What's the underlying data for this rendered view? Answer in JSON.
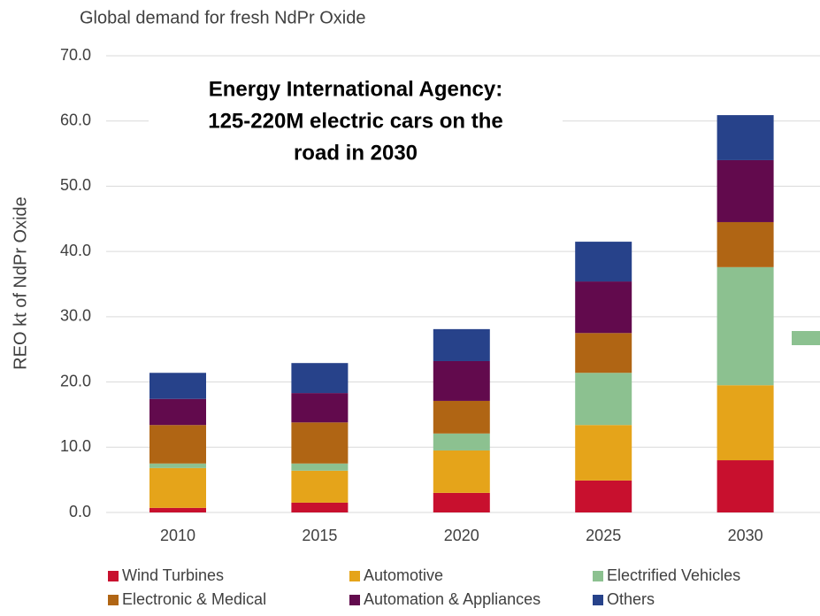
{
  "chart_data": {
    "type": "stacked_bar",
    "title": "Global demand for fresh NdPr Oxide",
    "y_label": "REO kt of NdPr Oxide",
    "annotation": [
      "Energy International Agency:",
      "125-220M electric cars on the",
      "road in 2030"
    ],
    "categories": [
      "2010",
      "2015",
      "2020",
      "2025",
      "2030"
    ],
    "series": [
      {
        "name": "Wind Turbines",
        "color": "#c8102e",
        "values": [
          0.7,
          1.5,
          3.0,
          4.9,
          8.0
        ]
      },
      {
        "name": "Automotive",
        "color": "#e5a41a",
        "values": [
          6.1,
          4.9,
          6.5,
          8.5,
          11.5
        ]
      },
      {
        "name": "Electrified Vehicles",
        "color": "#8cc190",
        "values": [
          0.7,
          1.1,
          2.6,
          8.0,
          18.1
        ]
      },
      {
        "name": "Electronic & Medical",
        "color": "#b06514",
        "values": [
          5.9,
          6.3,
          5.0,
          6.1,
          6.9
        ]
      },
      {
        "name": "Automation & Appliances",
        "color": "#620a4d",
        "values": [
          4.0,
          4.5,
          6.1,
          7.9,
          9.5
        ]
      },
      {
        "name": "Others",
        "color": "#27428a",
        "values": [
          4.0,
          4.6,
          4.9,
          6.1,
          6.9
        ]
      }
    ],
    "ylim": [
      0,
      70
    ],
    "yticks": [
      {
        "value": 0,
        "label": "0.0"
      },
      {
        "value": 10,
        "label": "10.0"
      },
      {
        "value": 20,
        "label": "20.0"
      },
      {
        "value": 30,
        "label": "30.0"
      },
      {
        "value": 40,
        "label": "40.0"
      },
      {
        "value": 50,
        "label": "50.0"
      },
      {
        "value": 60,
        "label": "60.0"
      },
      {
        "value": 70,
        "label": "70.0"
      }
    ],
    "grid": true
  }
}
